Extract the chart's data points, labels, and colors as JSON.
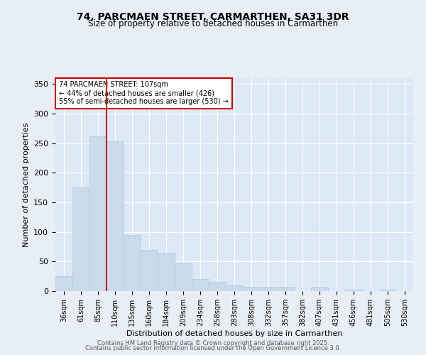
{
  "title_line1": "74, PARCMAEN STREET, CARMARTHEN, SA31 3DR",
  "title_line2": "Size of property relative to detached houses in Carmarthen",
  "xlabel": "Distribution of detached houses by size in Carmarthen",
  "ylabel": "Number of detached properties",
  "bar_labels": [
    "36sqm",
    "61sqm",
    "85sqm",
    "110sqm",
    "135sqm",
    "160sqm",
    "184sqm",
    "209sqm",
    "234sqm",
    "258sqm",
    "283sqm",
    "308sqm",
    "332sqm",
    "357sqm",
    "382sqm",
    "407sqm",
    "431sqm",
    "456sqm",
    "481sqm",
    "505sqm",
    "530sqm"
  ],
  "bar_values": [
    25,
    175,
    262,
    253,
    95,
    70,
    65,
    48,
    20,
    16,
    10,
    7,
    7,
    7,
    0,
    7,
    0,
    3,
    0,
    3,
    0
  ],
  "bar_color": "#c9daea",
  "bar_edgecolor": "#b0c8e0",
  "property_label": "74 PARCMAEN STREET: 107sqm",
  "annotation_line2": "← 44% of detached houses are smaller (426)",
  "annotation_line3": "55% of semi-detached houses are larger (530) →",
  "vline_color": "#cc0000",
  "vline_x_index": 2.48,
  "annotation_box_color": "#ffffff",
  "annotation_box_edgecolor": "#cc0000",
  "ylim": [
    0,
    360
  ],
  "yticks": [
    0,
    50,
    100,
    150,
    200,
    250,
    300,
    350
  ],
  "bg_color": "#e8eef5",
  "plot_bg_color": "#dce8f5",
  "footer_line1": "Contains HM Land Registry data © Crown copyright and database right 2025.",
  "footer_line2": "Contains public sector information licensed under the Open Government Licence 3.0."
}
